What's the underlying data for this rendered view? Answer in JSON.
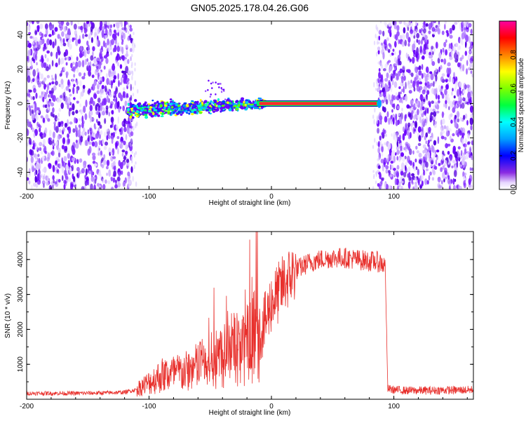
{
  "title": "GN05.2025.178.04.26.G06",
  "top_chart": {
    "xlabel": "Height of straight line (km)",
    "ylabel": "Frequency (Hz)",
    "xticks": [
      "-200",
      "-100",
      "0",
      "100"
    ],
    "yticks": [
      "40",
      "20",
      "0",
      "-20",
      "-40"
    ],
    "colorbar_label": "Normalized spectral amplitude",
    "colorbar_ticks": [
      "0.0",
      "0.2",
      "0.4",
      "0.6",
      "0.8"
    ]
  },
  "bottom_chart": {
    "xlabel": "Height of straight line (km)",
    "ylabel": "SNR (10 * v/v)",
    "xticks": [
      "-200",
      "-100",
      "0",
      "100"
    ],
    "yticks": [
      "4000",
      "3000",
      "2000",
      "1000"
    ]
  },
  "colors": {
    "snr_line": "#e8302c",
    "noise": "#6a00ff",
    "signal_core": "#ff2a2a"
  },
  "chart_data": [
    {
      "type": "heatmap",
      "xlim": [
        -200,
        165
      ],
      "ylim": [
        -50,
        48
      ],
      "zlim": [
        0,
        1
      ],
      "colormap": "rainbow (purple-blue-cyan-green-yellow-red-magenta)",
      "features": [
        {
          "region": "noise",
          "x_range": [
            -200,
            -113
          ],
          "y_range": [
            -50,
            48
          ],
          "amplitude": 0.1
        },
        {
          "region": "noise",
          "x_range": [
            87,
            165
          ],
          "y_range": [
            -50,
            48
          ],
          "amplitude": 0.1
        },
        {
          "region": "signal_scattered",
          "x_range": [
            -117,
            -5
          ],
          "y_center": [
            -4,
            0
          ],
          "amplitude": 0.35
        },
        {
          "region": "signal_tone",
          "x_range": [
            -5,
            87
          ],
          "y_center": 0,
          "amplitude": 0.9
        }
      ]
    },
    {
      "type": "line",
      "xlim": [
        -200,
        165
      ],
      "ylim": [
        0,
        4800
      ],
      "series": [
        {
          "x": [
            -200,
            -180,
            -160,
            -140,
            -120,
            -110,
            -100,
            -90,
            -80,
            -70,
            -60,
            -50,
            -40,
            -30,
            -20,
            -15,
            -10,
            -5,
            0,
            5,
            10,
            15,
            20,
            25,
            30,
            40,
            50,
            60,
            70,
            80,
            85,
            90,
            93,
            95,
            100,
            110,
            120,
            130,
            140,
            150,
            165
          ],
          "y": [
            170,
            170,
            170,
            180,
            200,
            280,
            450,
            650,
            700,
            750,
            900,
            1100,
            1250,
            1400,
            1500,
            1650,
            1900,
            2200,
            2800,
            3000,
            3300,
            3500,
            3700,
            3800,
            3900,
            4000,
            4050,
            4050,
            4000,
            3950,
            3950,
            3900,
            3800,
            300,
            270,
            250,
            250,
            250,
            260,
            260,
            270
          ]
        }
      ]
    }
  ]
}
